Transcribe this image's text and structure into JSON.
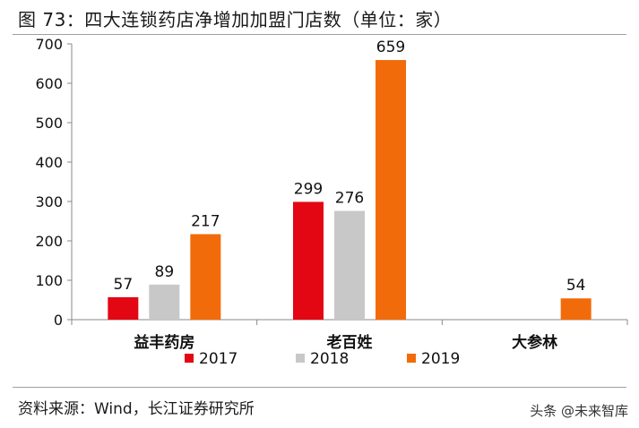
{
  "title": "图 73：四大连锁药店净增加加盟门店数（单位：家）",
  "source": "资料来源：Wind，长江证券研究所",
  "watermark": "头条 @未来智库",
  "chart_data": {
    "type": "bar",
    "categories": [
      "益丰药房",
      "老百姓",
      "大参林"
    ],
    "series": [
      {
        "name": "2017",
        "color": "#e30613",
        "values": [
          57,
          299,
          null
        ]
      },
      {
        "name": "2018",
        "color": "#c8c8c8",
        "values": [
          89,
          276,
          null
        ]
      },
      {
        "name": "2019",
        "color": "#f26b0a",
        "values": [
          217,
          659,
          54
        ]
      }
    ],
    "ylim": [
      0,
      700
    ],
    "yticks": [
      0,
      100,
      200,
      300,
      400,
      500,
      600,
      700
    ],
    "grid": false,
    "legend_position": "bottom"
  }
}
